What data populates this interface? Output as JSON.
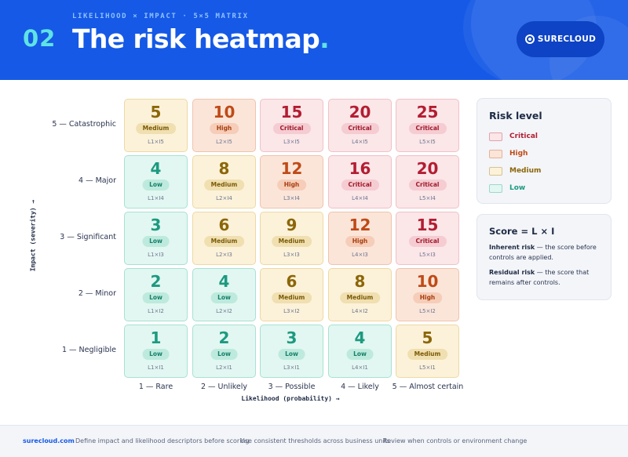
{
  "header": {
    "eyebrow": "LIKELIHOOD × IMPACT · 5×5 MATRIX",
    "number": "02",
    "title": "The risk heatmap",
    "title_dot": ".",
    "brand": "SURECLOUD",
    "brand_icon": "surecloud-logo-icon",
    "background_color": "#1559e6"
  },
  "axes": {
    "y_title": "Impact (severity) →",
    "x_title": "Likelihood (probability) →",
    "rows": [
      "5 — Catastrophic",
      "4 — Major",
      "3 — Significant",
      "2 — Minor",
      "1 — Negligible"
    ],
    "columns": [
      "1 — Rare",
      "2 — Unlikely",
      "3 — Possible",
      "4 — Likely",
      "5 — Almost certain"
    ]
  },
  "matrix": [
    [
      {
        "score": "5",
        "level": "Medium",
        "code": "L1×I5"
      },
      {
        "score": "10",
        "level": "High",
        "code": "L2×I5"
      },
      {
        "score": "15",
        "level": "Critical",
        "code": "L3×I5"
      },
      {
        "score": "20",
        "level": "Critical",
        "code": "L4×I5"
      },
      {
        "score": "25",
        "level": "Critical",
        "code": "L5×I5"
      }
    ],
    [
      {
        "score": "4",
        "level": "Low",
        "code": "L1×I4"
      },
      {
        "score": "8",
        "level": "Medium",
        "code": "L2×I4"
      },
      {
        "score": "12",
        "level": "High",
        "code": "L3×I4"
      },
      {
        "score": "16",
        "level": "Critical",
        "code": "L4×I4"
      },
      {
        "score": "20",
        "level": "Critical",
        "code": "L5×I4"
      }
    ],
    [
      {
        "score": "3",
        "level": "Low",
        "code": "L1×I3"
      },
      {
        "score": "6",
        "level": "Medium",
        "code": "L2×I3"
      },
      {
        "score": "9",
        "level": "Medium",
        "code": "L3×I3"
      },
      {
        "score": "12",
        "level": "High",
        "code": "L4×I3"
      },
      {
        "score": "15",
        "level": "Critical",
        "code": "L5×I3"
      }
    ],
    [
      {
        "score": "2",
        "level": "Low",
        "code": "L1×I2"
      },
      {
        "score": "4",
        "level": "Low",
        "code": "L2×I2"
      },
      {
        "score": "6",
        "level": "Medium",
        "code": "L3×I2"
      },
      {
        "score": "8",
        "level": "Medium",
        "code": "L4×I2"
      },
      {
        "score": "10",
        "level": "High",
        "code": "L5×I2"
      }
    ],
    [
      {
        "score": "1",
        "level": "Low",
        "code": "L1×I1"
      },
      {
        "score": "2",
        "level": "Low",
        "code": "L2×I1"
      },
      {
        "score": "3",
        "level": "Low",
        "code": "L3×I1"
      },
      {
        "score": "4",
        "level": "Low",
        "code": "L4×I1"
      },
      {
        "score": "5",
        "level": "Medium",
        "code": "L5×I1"
      }
    ]
  ],
  "legend": {
    "title": "Risk level",
    "items": [
      {
        "label": "Critical",
        "color": "#b31d32",
        "fill": "#fbe6e8"
      },
      {
        "label": "High",
        "color": "#bf4a16",
        "fill": "#fbe5d9"
      },
      {
        "label": "Medium",
        "color": "#8c6608",
        "fill": "#fcf2d9"
      },
      {
        "label": "Low",
        "color": "#1c9a80",
        "fill": "#e2f7f1"
      }
    ]
  },
  "formula": {
    "title": "Score = L × I",
    "inherent_term": "Inherent risk",
    "inherent_text": " — the score before controls are applied.",
    "residual_term": "Residual risk",
    "residual_text": " — the score that remains after controls."
  },
  "footer": {
    "site": "surecloud.com",
    "notes": [
      "Define impact and likelihood descriptors before scoring",
      "Use consistent thresholds across business units",
      "Review when controls or environment change"
    ]
  }
}
